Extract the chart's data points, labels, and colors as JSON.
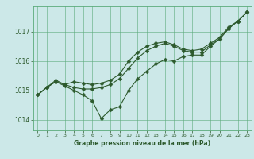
{
  "title": "Graphe pression niveau de la mer (hPa)",
  "background_color": "#cce8e8",
  "grid_color": "#5aaa7a",
  "line_color": "#2d5a2d",
  "hours": [
    0,
    1,
    2,
    3,
    4,
    5,
    6,
    7,
    8,
    9,
    10,
    11,
    12,
    13,
    14,
    15,
    16,
    17,
    18,
    19,
    20,
    21,
    22,
    23
  ],
  "line1": [
    1014.85,
    1015.1,
    1015.3,
    1015.15,
    1015.0,
    1014.85,
    1014.65,
    1014.05,
    1014.35,
    1014.45,
    1015.0,
    1015.4,
    1015.65,
    1015.9,
    1016.05,
    1016.0,
    1016.15,
    1016.2,
    1016.2,
    1016.5,
    1016.75,
    1017.1,
    1017.35,
    1017.65
  ],
  "line2": [
    1014.85,
    1015.1,
    1015.3,
    1015.2,
    1015.1,
    1015.05,
    1015.05,
    1015.1,
    1015.2,
    1015.4,
    1015.75,
    1016.1,
    1016.35,
    1016.5,
    1016.6,
    1016.5,
    1016.35,
    1016.3,
    1016.3,
    1016.55,
    1016.75,
    1017.1,
    1017.35,
    1017.65
  ],
  "line3": [
    1014.85,
    1015.1,
    1015.35,
    1015.2,
    1015.3,
    1015.25,
    1015.2,
    1015.25,
    1015.35,
    1015.55,
    1016.0,
    1016.3,
    1016.5,
    1016.6,
    1016.65,
    1016.55,
    1016.4,
    1016.35,
    1016.4,
    1016.6,
    1016.8,
    1017.15,
    1017.35,
    1017.65
  ],
  "yticks": [
    1014,
    1015,
    1016,
    1017
  ],
  "ylim": [
    1013.65,
    1017.85
  ],
  "xlim": [
    -0.5,
    23.5
  ],
  "marker_size": 2.5,
  "line_width": 0.8
}
